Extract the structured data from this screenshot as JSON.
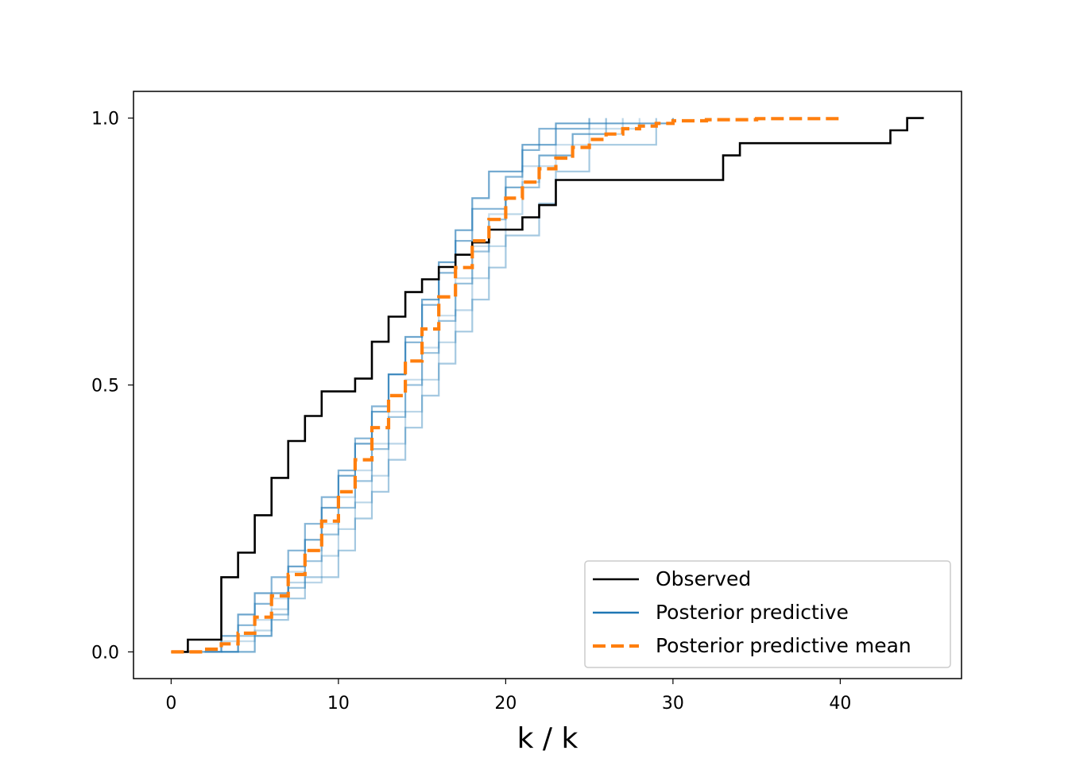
{
  "chart_data": {
    "type": "line",
    "step": true,
    "title": "",
    "xlabel": "k / k",
    "ylabel": "",
    "xlim": [
      -2.25,
      47.25
    ],
    "ylim": [
      -0.05,
      1.05
    ],
    "xticks": [
      0,
      10,
      20,
      30,
      40
    ],
    "yticks": [
      0.0,
      0.5,
      1.0
    ],
    "xtick_labels": [
      "0",
      "10",
      "20",
      "30",
      "40"
    ],
    "ytick_labels": [
      "0.0",
      "0.5",
      "1.0"
    ],
    "grid": false,
    "legend_position": "lower-right",
    "colors": {
      "observed": "#000000",
      "posterior_predictive": "#1f77b4",
      "posterior_mean": "#ff7f0e"
    },
    "series": [
      {
        "name": "Observed",
        "style": "solid",
        "x": [
          0,
          1,
          3,
          4,
          5,
          6,
          7,
          8,
          9,
          11,
          12,
          13,
          14,
          15,
          16,
          17,
          18,
          19,
          21,
          22,
          23,
          33,
          34,
          43,
          44,
          45
        ],
        "y": [
          0.0,
          0.023,
          0.14,
          0.186,
          0.256,
          0.326,
          0.395,
          0.442,
          0.488,
          0.512,
          0.581,
          0.628,
          0.674,
          0.698,
          0.721,
          0.744,
          0.767,
          0.791,
          0.814,
          0.837,
          0.884,
          0.93,
          0.953,
          0.977,
          1.0,
          1.0
        ]
      },
      {
        "name": "Posterior predictive",
        "style": "solid",
        "draws": [
          {
            "x": [
              2,
              3,
              5,
              6,
              7,
              8,
              9,
              10,
              11,
              12,
              13,
              14,
              15,
              16,
              17,
              18,
              19,
              20,
              21,
              23,
              25,
              28
            ],
            "y": [
              0.0,
              0.02,
              0.06,
              0.1,
              0.15,
              0.19,
              0.24,
              0.29,
              0.34,
              0.39,
              0.45,
              0.51,
              0.57,
              0.63,
              0.7,
              0.76,
              0.82,
              0.87,
              0.91,
              0.95,
              0.98,
              1.0
            ]
          },
          {
            "x": [
              3,
              4,
              6,
              7,
              8,
              9,
              10,
              11,
              12,
              13,
              14,
              15,
              16,
              17,
              18,
              19,
              20,
              22,
              24,
              26
            ],
            "y": [
              0.0,
              0.03,
              0.07,
              0.12,
              0.17,
              0.22,
              0.27,
              0.32,
              0.38,
              0.44,
              0.5,
              0.56,
              0.62,
              0.69,
              0.75,
              0.81,
              0.87,
              0.93,
              0.97,
              1.0
            ]
          },
          {
            "x": [
              1,
              3,
              4,
              5,
              7,
              8,
              9,
              10,
              11,
              12,
              13,
              14,
              15,
              16,
              17,
              18,
              19,
              21,
              23,
              30
            ],
            "y": [
              0.0,
              0.03,
              0.07,
              0.11,
              0.16,
              0.21,
              0.27,
              0.33,
              0.39,
              0.45,
              0.52,
              0.59,
              0.66,
              0.73,
              0.79,
              0.85,
              0.9,
              0.95,
              0.99,
              1.0
            ]
          },
          {
            "x": [
              4,
              5,
              6,
              7,
              9,
              10,
              11,
              12,
              13,
              14,
              15,
              16,
              17,
              18,
              19,
              20,
              21,
              22,
              24,
              27
            ],
            "y": [
              0.0,
              0.04,
              0.08,
              0.13,
              0.18,
              0.23,
              0.28,
              0.33,
              0.39,
              0.45,
              0.51,
              0.58,
              0.64,
              0.7,
              0.76,
              0.82,
              0.88,
              0.93,
              0.97,
              1.0
            ]
          },
          {
            "x": [
              2,
              4,
              5,
              6,
              7,
              8,
              9,
              10,
              11,
              12,
              13,
              14,
              15,
              16,
              17,
              18,
              20,
              21,
              22,
              25
            ],
            "y": [
              0.0,
              0.05,
              0.09,
              0.14,
              0.19,
              0.24,
              0.29,
              0.34,
              0.4,
              0.46,
              0.52,
              0.58,
              0.65,
              0.71,
              0.77,
              0.83,
              0.89,
              0.94,
              0.98,
              1.0
            ]
          },
          {
            "x": [
              3,
              5,
              6,
              7,
              8,
              10,
              11,
              12,
              13,
              14,
              15,
              16,
              17,
              18,
              19,
              20,
              22,
              23,
              25,
              29
            ],
            "y": [
              0.0,
              0.03,
              0.06,
              0.1,
              0.14,
              0.19,
              0.25,
              0.3,
              0.36,
              0.42,
              0.48,
              0.54,
              0.6,
              0.66,
              0.72,
              0.78,
              0.84,
              0.9,
              0.95,
              1.0
            ]
          }
        ]
      },
      {
        "name": "Posterior predictive mean",
        "style": "dashed",
        "x": [
          0,
          1,
          2,
          3,
          4,
          5,
          6,
          7,
          8,
          9,
          10,
          11,
          12,
          13,
          14,
          15,
          16,
          17,
          18,
          19,
          20,
          21,
          22,
          23,
          24,
          25,
          26,
          27,
          28,
          29,
          30,
          32,
          35,
          40
        ],
        "y": [
          0.0,
          0.0,
          0.005,
          0.015,
          0.035,
          0.065,
          0.105,
          0.145,
          0.19,
          0.245,
          0.3,
          0.36,
          0.42,
          0.48,
          0.545,
          0.605,
          0.665,
          0.72,
          0.77,
          0.81,
          0.85,
          0.88,
          0.905,
          0.925,
          0.945,
          0.96,
          0.97,
          0.98,
          0.985,
          0.99,
          0.995,
          0.997,
          0.999,
          1.0
        ]
      }
    ]
  }
}
